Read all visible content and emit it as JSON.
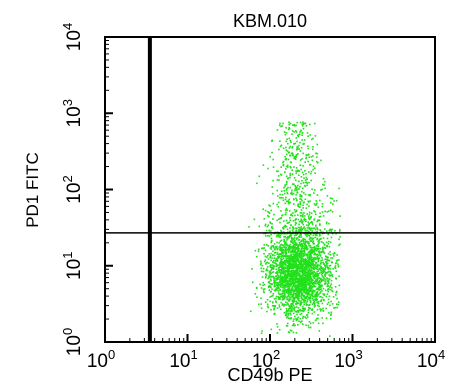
{
  "chart_data": {
    "type": "scatter",
    "title": "KBM.010",
    "xlabel": "CD49b PE",
    "ylabel": "PD1 FITC",
    "xscale": "log",
    "yscale": "log",
    "xlim": [
      1,
      10000
    ],
    "ylim": [
      1,
      10000
    ],
    "x_ticks": [
      {
        "value": 1,
        "base": "10",
        "exp": "0"
      },
      {
        "value": 10,
        "base": "10",
        "exp": "1"
      },
      {
        "value": 100,
        "base": "10",
        "exp": "2"
      },
      {
        "value": 1000,
        "base": "10",
        "exp": "3"
      },
      {
        "value": 10000,
        "base": "10",
        "exp": "4"
      }
    ],
    "y_ticks": [
      {
        "value": 1,
        "base": "10",
        "exp": "0"
      },
      {
        "value": 10,
        "base": "10",
        "exp": "1"
      },
      {
        "value": 100,
        "base": "10",
        "exp": "2"
      },
      {
        "value": 1000,
        "base": "10",
        "exp": "3"
      },
      {
        "value": 10000,
        "base": "10",
        "exp": "4"
      }
    ],
    "gates": {
      "vertical_x": 3.5,
      "horizontal_y": 27
    },
    "point_color": "#22e01c",
    "population": {
      "center_x": 220,
      "center_y": 8,
      "low_cluster_y_range": [
        1.2,
        27
      ],
      "high_tail_y_range": [
        27,
        800
      ],
      "x_range": [
        50,
        700
      ]
    }
  }
}
